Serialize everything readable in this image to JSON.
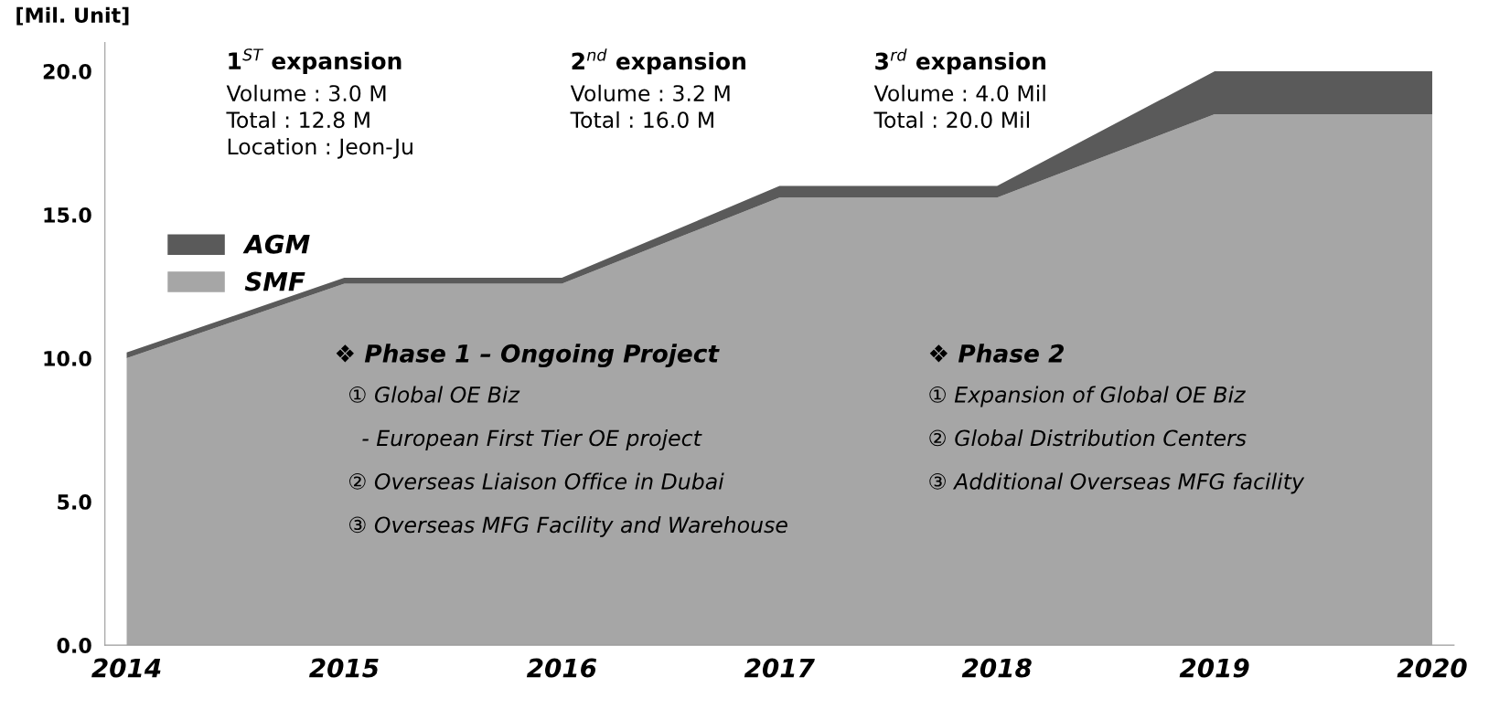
{
  "chart_data": {
    "type": "area",
    "stacked": true,
    "ylabel": "[Mil. Unit]",
    "categories": [
      "2014",
      "2015",
      "2016",
      "2017",
      "2018",
      "2019",
      "2020"
    ],
    "series": [
      {
        "name": "SMF",
        "color": "#a6a6a6",
        "values": [
          10.0,
          12.6,
          12.6,
          15.6,
          15.6,
          18.5,
          18.5
        ]
      },
      {
        "name": "AGM",
        "color": "#5a5a5a",
        "values": [
          0.2,
          0.2,
          0.2,
          0.4,
          0.4,
          1.5,
          1.5
        ]
      }
    ],
    "ylim": [
      0,
      21
    ],
    "yticks": [
      {
        "value": 0,
        "label": "0.0"
      },
      {
        "value": 5,
        "label": "5.0"
      },
      {
        "value": 10,
        "label": "10.0"
      },
      {
        "value": 15,
        "label": "15.0"
      },
      {
        "value": 20,
        "label": "20.0"
      }
    ],
    "grid": false,
    "legend": "top left",
    "annotations": [
      "1$^{ST}$ expansion",
      "Volume : 3.0 M\nTotal : 12.8 M\nLocation : Jeon-Ju",
      "2$^{nd}$ expansion",
      "Volume : 3.2 M\nTotal : 16.0 M",
      "3$^{rd}$ expansion",
      "Volume : 4.0 Mil\nTotal : 20.0 Mil",
      "❖ Phase 1 – Ongoing Project",
      "① Global OE Biz\n\n  - European First Tier OE project\n\n② Overseas Liaison Office in Dubai\n\n③ Overseas MFG Facility and Warehouse",
      "❖ Phase 2",
      "① Expansion of Global OE Biz\n\n② Global Distribution Centers\n\n③ Additional Overseas MFG facility"
    ]
  }
}
